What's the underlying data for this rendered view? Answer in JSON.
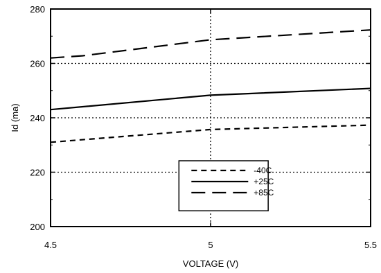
{
  "chart_data": {
    "type": "line",
    "title": "",
    "xlabel": "VOLTAGE (V)",
    "ylabel": "Id (ma)",
    "xlim": [
      4.5,
      5.5
    ],
    "ylim": [
      200,
      280
    ],
    "xticks": [
      4.5,
      5,
      5.5
    ],
    "yticks": [
      200,
      220,
      240,
      260,
      280
    ],
    "xtick_labels": [
      "4.5",
      "5",
      "5.5"
    ],
    "ytick_labels": [
      "200",
      "220",
      "240",
      "260",
      "280"
    ],
    "grid": "dotted",
    "legend_position": "bottom-center",
    "series": [
      {
        "name": "-40C",
        "style": "short-dash",
        "x": [
          4.5,
          5,
          5.5
        ],
        "y": [
          231,
          235.7,
          237.3
        ]
      },
      {
        "name": "+25C",
        "style": "solid",
        "x": [
          4.5,
          5,
          5.5
        ],
        "y": [
          243,
          248.3,
          250.8
        ]
      },
      {
        "name": "+85C",
        "style": "long-dash",
        "x": [
          4.5,
          4.6,
          5,
          5.5
        ],
        "y": [
          262,
          262.8,
          268.7,
          272.3
        ]
      }
    ],
    "line_color": "#000000"
  }
}
